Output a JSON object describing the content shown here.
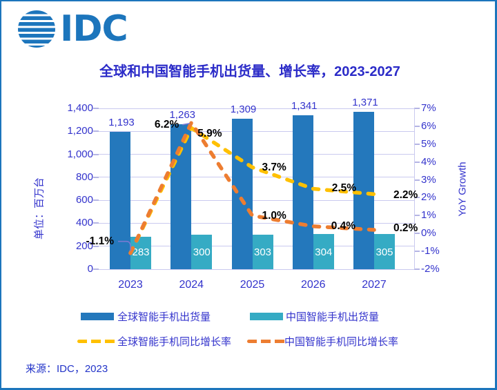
{
  "logo": {
    "text": "IDC",
    "color": "#1c75bc"
  },
  "title": "全球和中国智能手机出货量、增长率，2023-2027",
  "source": "来源：IDC，2023",
  "legend": [
    {
      "type": "bar",
      "color": "#2478bc",
      "label": "全球智能手机出货量"
    },
    {
      "type": "bar",
      "color": "#35abc4",
      "label": "中国智能手机出货量"
    },
    {
      "type": "dash",
      "color": "#ffc000",
      "label": "全球智能手机同比增长率"
    },
    {
      "type": "dash",
      "color": "#ed7d31",
      "label": "中国智能手机同比增长率"
    }
  ],
  "chart_data": {
    "type": "bar+line dual-axis",
    "categories": [
      "2023",
      "2024",
      "2025",
      "2026",
      "2027"
    ],
    "bar_series": [
      {
        "name": "全球智能手机出货量",
        "axis": "left",
        "color": "#2478bc",
        "values": [
          1193,
          1263,
          1309,
          1341,
          1371
        ],
        "labels": [
          "1,193",
          "1,263",
          "1,309",
          "1,341",
          "1,371"
        ],
        "label_color": "#3333cc"
      },
      {
        "name": "中国智能手机出货量",
        "axis": "left",
        "color": "#35abc4",
        "values": [
          283,
          300,
          303,
          304,
          305
        ],
        "labels": [
          "283",
          "300",
          "303",
          "304",
          "305"
        ],
        "label_color": "#ffffff"
      }
    ],
    "line_series": [
      {
        "name": "全球智能手机同比增长率",
        "axis": "right",
        "color": "#ffc000",
        "style": "dashed",
        "values": [
          -1.1,
          5.9,
          3.7,
          2.5,
          2.2
        ],
        "labels": [
          null,
          "5.9%",
          "3.7%",
          "2.5%",
          "2.2%"
        ]
      },
      {
        "name": "中国智能手机同比增长率",
        "axis": "right",
        "color": "#ed7d31",
        "style": "dashed",
        "values": [
          -1.1,
          6.2,
          1.0,
          0.4,
          0.2
        ],
        "labels": [
          "-1.1%",
          "6.2%",
          "1.0%",
          "0.4%",
          "0.2%"
        ]
      }
    ],
    "left_axis": {
      "title": "单位：百万台",
      "min": 0,
      "max": 1400,
      "step": 200,
      "ticks": [
        "1,400",
        "1,200",
        "1,000",
        "800",
        "600",
        "400",
        "200",
        "0"
      ]
    },
    "right_axis": {
      "title": "YoY Growth",
      "min": -2,
      "max": 7,
      "step": 1,
      "unit": "%",
      "ticks": [
        "7%",
        "6%",
        "5%",
        "4%",
        "3%",
        "2%",
        "1%",
        "0%",
        "-1%",
        "-2%"
      ]
    },
    "grid": true,
    "legend_position": "bottom"
  },
  "colors": {
    "grid": "#c9c9ef",
    "tick_text": "#3333cc",
    "title_text": "#2b2bc8",
    "frame": "#1c75bc",
    "point_label": "#000000",
    "leader": "#7a7ad2"
  }
}
